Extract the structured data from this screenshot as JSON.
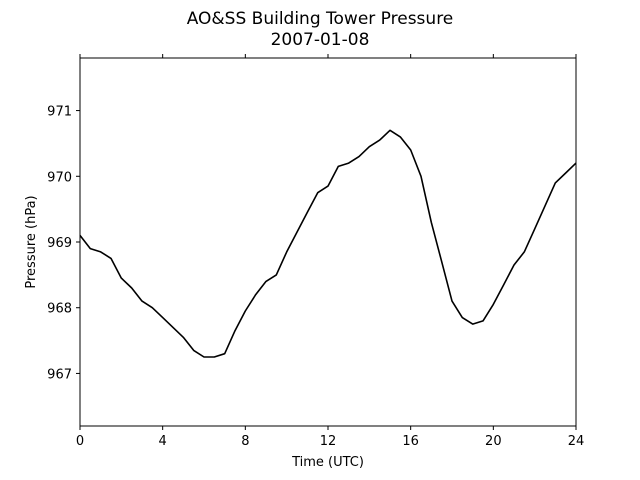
{
  "chart_data": {
    "type": "line",
    "title": "AO&SS Building Tower Pressure",
    "subtitle": "2007-01-08",
    "xlabel": "Time (UTC)",
    "ylabel": "Pressure (hPa)",
    "xlim": [
      0,
      24
    ],
    "ylim": [
      966.2,
      971.8
    ],
    "xticks": [
      0,
      4,
      8,
      12,
      16,
      20,
      24
    ],
    "yticks": [
      967,
      968,
      969,
      970,
      971
    ],
    "grid": false,
    "legend": "none",
    "line_color": "#000000",
    "series": [
      {
        "x": [
          0,
          0.5,
          1,
          1.5,
          2,
          2.5,
          3,
          3.5,
          4,
          4.5,
          5,
          5.5,
          6,
          6.5,
          7,
          7.5,
          8,
          8.5,
          9,
          9.5,
          10,
          10.5,
          11,
          11.5,
          12,
          12.5,
          13,
          13.5,
          14,
          14.5,
          15,
          15.5,
          16,
          16.5,
          17,
          17.5,
          18,
          18.5,
          19,
          19.5,
          20,
          20.5,
          21,
          21.5,
          22,
          22.5,
          23,
          23.5,
          24
        ],
        "y": [
          969.1,
          968.9,
          968.85,
          968.75,
          968.45,
          968.3,
          968.1,
          968.0,
          967.85,
          967.7,
          967.55,
          967.35,
          967.25,
          967.25,
          967.3,
          967.65,
          967.95,
          968.2,
          968.4,
          968.5,
          968.85,
          969.15,
          969.45,
          969.75,
          969.85,
          970.15,
          970.2,
          970.3,
          970.45,
          970.55,
          970.7,
          970.6,
          970.4,
          970.0,
          969.3,
          968.7,
          968.1,
          967.85,
          967.75,
          967.8,
          968.05,
          968.35,
          968.65,
          968.85,
          969.2,
          969.55,
          969.9,
          970.05,
          970.2
        ]
      }
    ]
  }
}
